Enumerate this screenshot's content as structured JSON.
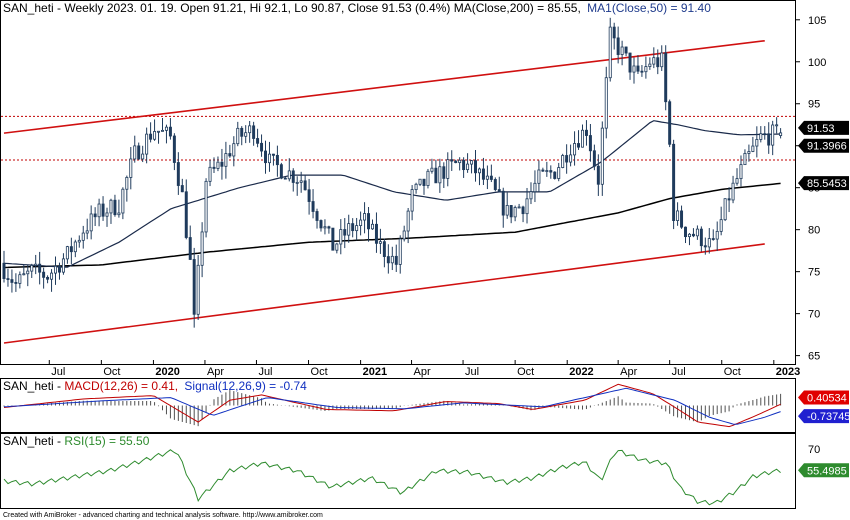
{
  "colors": {
    "candle_up": "#ffffff",
    "candle_down": "#1f3b5c",
    "candle_edge": "#1f3b5c",
    "ma200": "#000000",
    "ma50": "#1a2a4a",
    "channel": "#d01010",
    "hline": "#c00000",
    "macd": "#c00000",
    "signal": "#1030c0",
    "hist": "#505050",
    "rsi": "#2e8b2e",
    "tag_black": "#000000",
    "tag_red": "#e00000",
    "tag_blue": "#2020d0",
    "tag_green": "#2e8b2e"
  },
  "header": {
    "main_prefix": "SAN_heti - Weekly 2023. 01. 19. Open 91.21, Hi 92.1, Lo 90.87, Close 91.53 (0.4%) MA(Close,200) = 85.55,",
    "main_ma": "MA1(Close,50) = 91.40",
    "macd_prefix": "SAN_heti - ",
    "macd_label": "MACD(12,26) = 0.41,",
    "signal_label": "Signal(12,26,9) = -0.74",
    "rsi_prefix": "SAN_heti - ",
    "rsi_label": "RSI(15) = 55.50"
  },
  "footer": "Created with AmiBroker - advanced charting and technical analysis software. http://www.amibroker.com",
  "tags": {
    "close": "91.53",
    "ma50": "91.3966",
    "ma200": "85.5453",
    "macd": "0.40534",
    "signal": "-0.737453",
    "rsi": "55.4985"
  },
  "chart_data": {
    "type": "candlestick",
    "title": "SAN_heti - Weekly",
    "last": {
      "date": "2023. 01. 19.",
      "open": 91.21,
      "high": 92.1,
      "low": 90.87,
      "close": 91.53,
      "change_pct": 0.4
    },
    "ylim": [
      64,
      107
    ],
    "y_ticks": [
      65,
      70,
      75,
      80,
      85,
      90,
      95,
      100,
      105
    ],
    "x_range": [
      "2019-04-12",
      "2023-01-19"
    ],
    "x_ticks": [
      {
        "date": "2019-07-01",
        "label": "Jul",
        "bold": false
      },
      {
        "date": "2019-10-01",
        "label": "Oct",
        "bold": false
      },
      {
        "date": "2020-01-01",
        "label": "2020",
        "bold": true
      },
      {
        "date": "2020-04-01",
        "label": "Apr",
        "bold": false
      },
      {
        "date": "2020-07-01",
        "label": "Jul",
        "bold": false
      },
      {
        "date": "2020-10-01",
        "label": "Oct",
        "bold": false
      },
      {
        "date": "2021-01-01",
        "label": "2021",
        "bold": true
      },
      {
        "date": "2021-04-01",
        "label": "Apr",
        "bold": false
      },
      {
        "date": "2021-07-01",
        "label": "Jul",
        "bold": false
      },
      {
        "date": "2021-10-01",
        "label": "Oct",
        "bold": false
      },
      {
        "date": "2022-01-01",
        "label": "2022",
        "bold": true
      },
      {
        "date": "2022-04-01",
        "label": "Apr",
        "bold": false
      },
      {
        "date": "2022-07-01",
        "label": "Jul",
        "bold": false
      },
      {
        "date": "2022-10-01",
        "label": "Oct",
        "bold": false
      },
      {
        "date": "2023-01-01",
        "label": "2023",
        "bold": true
      }
    ],
    "price_keypoints": [
      [
        "2019-04-12",
        76
      ],
      [
        "2019-05-10",
        73.5
      ],
      [
        "2019-06-07",
        75
      ],
      [
        "2019-07-05",
        74.5
      ],
      [
        "2019-08-09",
        77
      ],
      [
        "2019-09-06",
        80
      ],
      [
        "2019-10-04",
        82
      ],
      [
        "2019-11-08",
        83
      ],
      [
        "2019-12-06",
        89
      ],
      [
        "2020-01-10",
        92
      ],
      [
        "2020-02-07",
        91
      ],
      [
        "2020-02-28",
        84
      ],
      [
        "2020-03-13",
        76
      ],
      [
        "2020-03-20",
        69
      ],
      [
        "2020-04-10",
        86
      ],
      [
        "2020-05-08",
        88
      ],
      [
        "2020-06-05",
        91
      ],
      [
        "2020-07-03",
        92
      ],
      [
        "2020-07-31",
        88
      ],
      [
        "2020-08-28",
        87
      ],
      [
        "2020-09-25",
        86
      ],
      [
        "2020-10-23",
        82
      ],
      [
        "2020-11-20",
        78
      ],
      [
        "2020-12-18",
        80
      ],
      [
        "2021-01-15",
        81
      ],
      [
        "2021-02-12",
        78
      ],
      [
        "2021-03-12",
        76
      ],
      [
        "2021-04-09",
        84
      ],
      [
        "2021-05-07",
        86
      ],
      [
        "2021-06-04",
        87
      ],
      [
        "2021-07-02",
        88
      ],
      [
        "2021-07-30",
        87
      ],
      [
        "2021-08-27",
        85
      ],
      [
        "2021-09-24",
        82
      ],
      [
        "2021-10-22",
        83
      ],
      [
        "2021-11-19",
        86
      ],
      [
        "2021-12-17",
        87
      ],
      [
        "2022-01-14",
        90
      ],
      [
        "2022-02-11",
        92
      ],
      [
        "2022-03-04",
        86
      ],
      [
        "2022-03-25",
        103
      ],
      [
        "2022-04-15",
        101
      ],
      [
        "2022-05-13",
        98
      ],
      [
        "2022-06-03",
        100
      ],
      [
        "2022-06-24",
        100
      ],
      [
        "2022-07-08",
        90
      ],
      [
        "2022-07-15",
        82
      ],
      [
        "2022-08-05",
        80
      ],
      [
        "2022-09-02",
        79
      ],
      [
        "2022-09-23",
        78
      ],
      [
        "2022-10-21",
        84
      ],
      [
        "2022-11-18",
        88
      ],
      [
        "2022-12-16",
        91
      ],
      [
        "2023-01-19",
        91.53
      ]
    ],
    "ma200_points": [
      [
        "2019-04-12",
        75.5
      ],
      [
        "2019-10-01",
        75.8
      ],
      [
        "2020-04-01",
        77.3
      ],
      [
        "2020-10-01",
        78.5
      ],
      [
        "2021-04-01",
        79.0
      ],
      [
        "2021-10-01",
        79.7
      ],
      [
        "2022-04-01",
        82.0
      ],
      [
        "2022-07-01",
        83.7
      ],
      [
        "2022-10-01",
        84.8
      ],
      [
        "2023-01-19",
        85.55
      ]
    ],
    "ma50_points": [
      [
        "2019-04-12",
        76.0
      ],
      [
        "2019-08-01",
        75.5
      ],
      [
        "2019-11-01",
        78.5
      ],
      [
        "2020-02-01",
        82.5
      ],
      [
        "2020-06-01",
        85.0
      ],
      [
        "2020-09-01",
        86.5
      ],
      [
        "2020-12-01",
        86.5
      ],
      [
        "2021-03-01",
        84.5
      ],
      [
        "2021-06-01",
        83.5
      ],
      [
        "2021-09-01",
        84.5
      ],
      [
        "2021-12-01",
        84.5
      ],
      [
        "2022-03-01",
        88.0
      ],
      [
        "2022-06-01",
        93.0
      ],
      [
        "2022-07-15",
        92.5
      ],
      [
        "2022-09-01",
        91.8
      ],
      [
        "2022-11-01",
        91.3
      ],
      [
        "2023-01-19",
        91.4
      ]
    ],
    "channel_upper": [
      [
        "2019-04-12",
        91.5
      ],
      [
        "2022-12-16",
        102.5
      ]
    ],
    "channel_lower": [
      [
        "2019-04-12",
        66.5
      ],
      [
        "2022-12-16",
        78.3
      ]
    ],
    "hlines": [
      93.5,
      88.3
    ],
    "macd_ylim": [
      -4,
      4
    ],
    "macd_points": [
      [
        "2019-04-12",
        -0.3
      ],
      [
        "2019-09-01",
        1.0
      ],
      [
        "2020-01-01",
        1.5
      ],
      [
        "2020-03-20",
        -2.5
      ],
      [
        "2020-05-15",
        0.8
      ],
      [
        "2020-07-10",
        1.6
      ],
      [
        "2020-11-01",
        -0.6
      ],
      [
        "2021-03-01",
        -0.8
      ],
      [
        "2021-06-01",
        0.6
      ],
      [
        "2021-09-01",
        0.3
      ],
      [
        "2021-11-01",
        -0.6
      ],
      [
        "2022-02-01",
        0.8
      ],
      [
        "2022-04-01",
        3.2
      ],
      [
        "2022-06-01",
        1.8
      ],
      [
        "2022-07-20",
        -0.8
      ],
      [
        "2022-08-20",
        -2.5
      ],
      [
        "2022-10-15",
        -3.2
      ],
      [
        "2022-12-01",
        -1.5
      ],
      [
        "2023-01-19",
        0.41
      ]
    ],
    "signal_points": [
      [
        "2019-04-12",
        -0.2
      ],
      [
        "2019-10-01",
        0.7
      ],
      [
        "2020-02-01",
        1.2
      ],
      [
        "2020-04-15",
        -1.5
      ],
      [
        "2020-07-20",
        1.2
      ],
      [
        "2020-11-20",
        -0.3
      ],
      [
        "2021-03-20",
        -0.5
      ],
      [
        "2021-07-01",
        0.4
      ],
      [
        "2021-11-20",
        -0.2
      ],
      [
        "2022-04-15",
        2.6
      ],
      [
        "2022-07-10",
        0.8
      ],
      [
        "2022-09-10",
        -1.8
      ],
      [
        "2022-10-25",
        -2.9
      ],
      [
        "2022-12-15",
        -1.8
      ],
      [
        "2023-01-19",
        -0.74
      ]
    ],
    "rsi_ylim": [
      30,
      80
    ],
    "rsi_points": [
      [
        "2019-04-12",
        48
      ],
      [
        "2019-06-01",
        46
      ],
      [
        "2019-08-01",
        50
      ],
      [
        "2019-10-15",
        55
      ],
      [
        "2019-12-15",
        62
      ],
      [
        "2020-01-15",
        66
      ],
      [
        "2020-02-10",
        69
      ],
      [
        "2020-03-20",
        36
      ],
      [
        "2020-05-15",
        55
      ],
      [
        "2020-07-10",
        60
      ],
      [
        "2020-09-10",
        55
      ],
      [
        "2020-11-10",
        44
      ],
      [
        "2021-01-20",
        50
      ],
      [
        "2021-03-15",
        40
      ],
      [
        "2021-05-15",
        55
      ],
      [
        "2021-07-10",
        54
      ],
      [
        "2021-09-15",
        47
      ],
      [
        "2021-11-01",
        50
      ],
      [
        "2021-12-20",
        57
      ],
      [
        "2022-02-01",
        61
      ],
      [
        "2022-03-01",
        48
      ],
      [
        "2022-03-28",
        69
      ],
      [
        "2022-05-15",
        62
      ],
      [
        "2022-06-25",
        60
      ],
      [
        "2022-07-20",
        43
      ],
      [
        "2022-08-20",
        34
      ],
      [
        "2022-09-20",
        33
      ],
      [
        "2022-10-25",
        41
      ],
      [
        "2022-11-25",
        51
      ],
      [
        "2022-12-25",
        54
      ],
      [
        "2023-01-19",
        55.5
      ]
    ]
  }
}
